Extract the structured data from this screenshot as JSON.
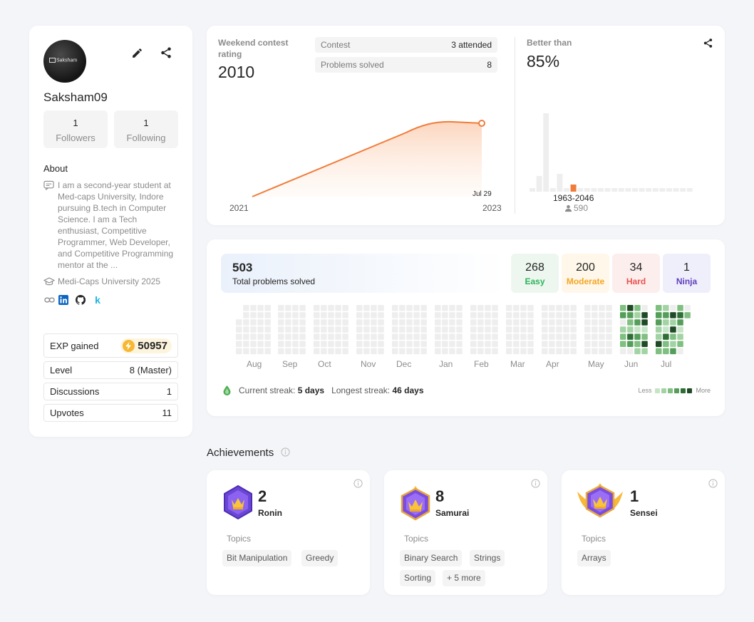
{
  "profile": {
    "avatar_text": "Saksham",
    "username": "Saksham09",
    "followers_count": "1",
    "followers_label": "Followers",
    "following_count": "1",
    "following_label": "Following",
    "about_title": "About",
    "about_text": "I am a second-year student at Med-caps University, Indore pursuing B.tech in Computer Science. I am a Tech enthusiast, Competitive Programmer, Web Developer, and Competitive Programming mentor at the ...",
    "school": "Medi-Caps University 2025",
    "social_k": "k",
    "exp_label": "EXP gained",
    "exp_value": "50957",
    "level_label": "Level",
    "level_value": "8 (Master)",
    "discussions_label": "Discussions",
    "discussions_value": "1",
    "upvotes_label": "Upvotes",
    "upvotes_value": "11"
  },
  "rating": {
    "label": "Weekend contest rating",
    "value": "2010",
    "contest_label": "Contest",
    "contest_value": "3 attended",
    "problems_label": "Problems solved",
    "problems_value": "8",
    "x_start": "2021",
    "x_end": "2023",
    "point_label": "Jul 29",
    "better_label": "Better than",
    "better_value": "85%",
    "range_label": "1963-2046",
    "range_count": "590"
  },
  "solved": {
    "total": "503",
    "total_label": "Total problems solved",
    "easy_count": "268",
    "easy_label": "Easy",
    "moderate_count": "200",
    "moderate_label": "Moderate",
    "hard_count": "34",
    "hard_label": "Hard",
    "ninja_count": "1",
    "ninja_label": "Ninja",
    "months": [
      "Aug",
      "Sep",
      "Oct",
      "Nov",
      "Dec",
      "Jan",
      "Feb",
      "Mar",
      "Apr",
      "May",
      "Jun",
      "Jul"
    ],
    "current_streak_label": "Current streak:",
    "current_streak_value": "5 days",
    "longest_streak_label": "Longest streak:",
    "longest_streak_value": "46 days",
    "legend_less": "Less",
    "legend_more": "More"
  },
  "achievements": {
    "title": "Achievements",
    "topics_label": "Topics",
    "cards": [
      {
        "count": "2",
        "name": "Ronin",
        "tags": [
          "Bit Manipulation",
          "Greedy"
        ]
      },
      {
        "count": "8",
        "name": "Samurai",
        "tags": [
          "Binary Search",
          "Strings",
          "Sorting",
          "+ 5 more"
        ]
      },
      {
        "count": "1",
        "name": "Sensei",
        "tags": [
          "Arrays"
        ]
      }
    ]
  },
  "colors": {
    "rating_line": "#f07c3a",
    "easy": "#2db55d",
    "moderate": "#f5a623",
    "hard": "#e9534f",
    "ninja": "#5e3fbd"
  },
  "icons": [
    "edit-icon",
    "share-icon",
    "comment-icon",
    "graduation-cap-icon",
    "link-icon",
    "linkedin-icon",
    "github-icon",
    "bolt-icon",
    "user-icon",
    "info-icon",
    "drop-icon"
  ]
}
